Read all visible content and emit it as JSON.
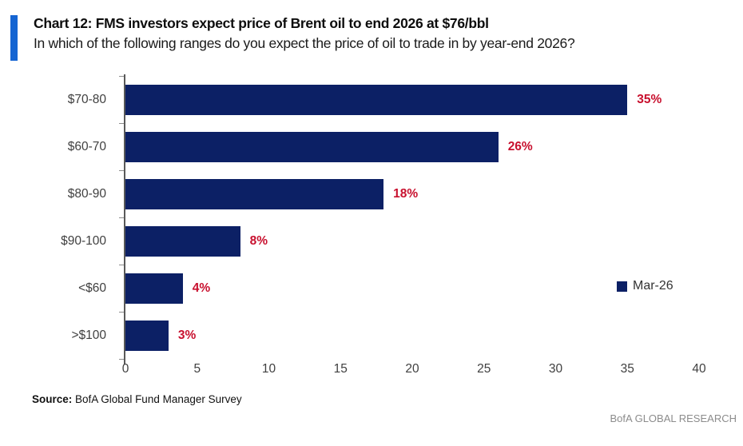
{
  "header": {
    "title": "Chart 12: FMS investors expect price of Brent oil to end 2026 at $76/bbl",
    "subtitle": "In which of the following ranges do you expect the price of oil to trade in by year-end 2026?"
  },
  "chart_data": {
    "type": "bar",
    "orientation": "horizontal",
    "title": "Chart 12: FMS investors expect price of Brent oil to end 2026 at $76/bbl",
    "subtitle": "In which of the following ranges do you expect the price of oil to trade in by year-end 2026?",
    "categories": [
      "$70-80",
      "$60-70",
      "$80-90",
      "$90-100",
      "<$60",
      ">$100"
    ],
    "series": [
      {
        "name": "Mar-26",
        "values": [
          35,
          26,
          18,
          8,
          4,
          3
        ]
      }
    ],
    "value_labels": [
      "35%",
      "26%",
      "18%",
      "8%",
      "4%",
      "3%"
    ],
    "xlim": [
      0,
      40
    ],
    "xticks": [
      "0",
      "5",
      "10",
      "15",
      "20",
      "25",
      "30",
      "35",
      "40"
    ],
    "grid": false,
    "legend": {
      "label": "Mar-26",
      "position": "right-middle"
    },
    "colors": {
      "bar": "#0c2065",
      "value_label": "#c8102e",
      "accent": "#1565d2",
      "axis": "#595959"
    }
  },
  "footer": {
    "source_label": "Source:",
    "source_text": " BofA Global Fund Manager Survey",
    "brand": "BofA GLOBAL RESEARCH"
  }
}
